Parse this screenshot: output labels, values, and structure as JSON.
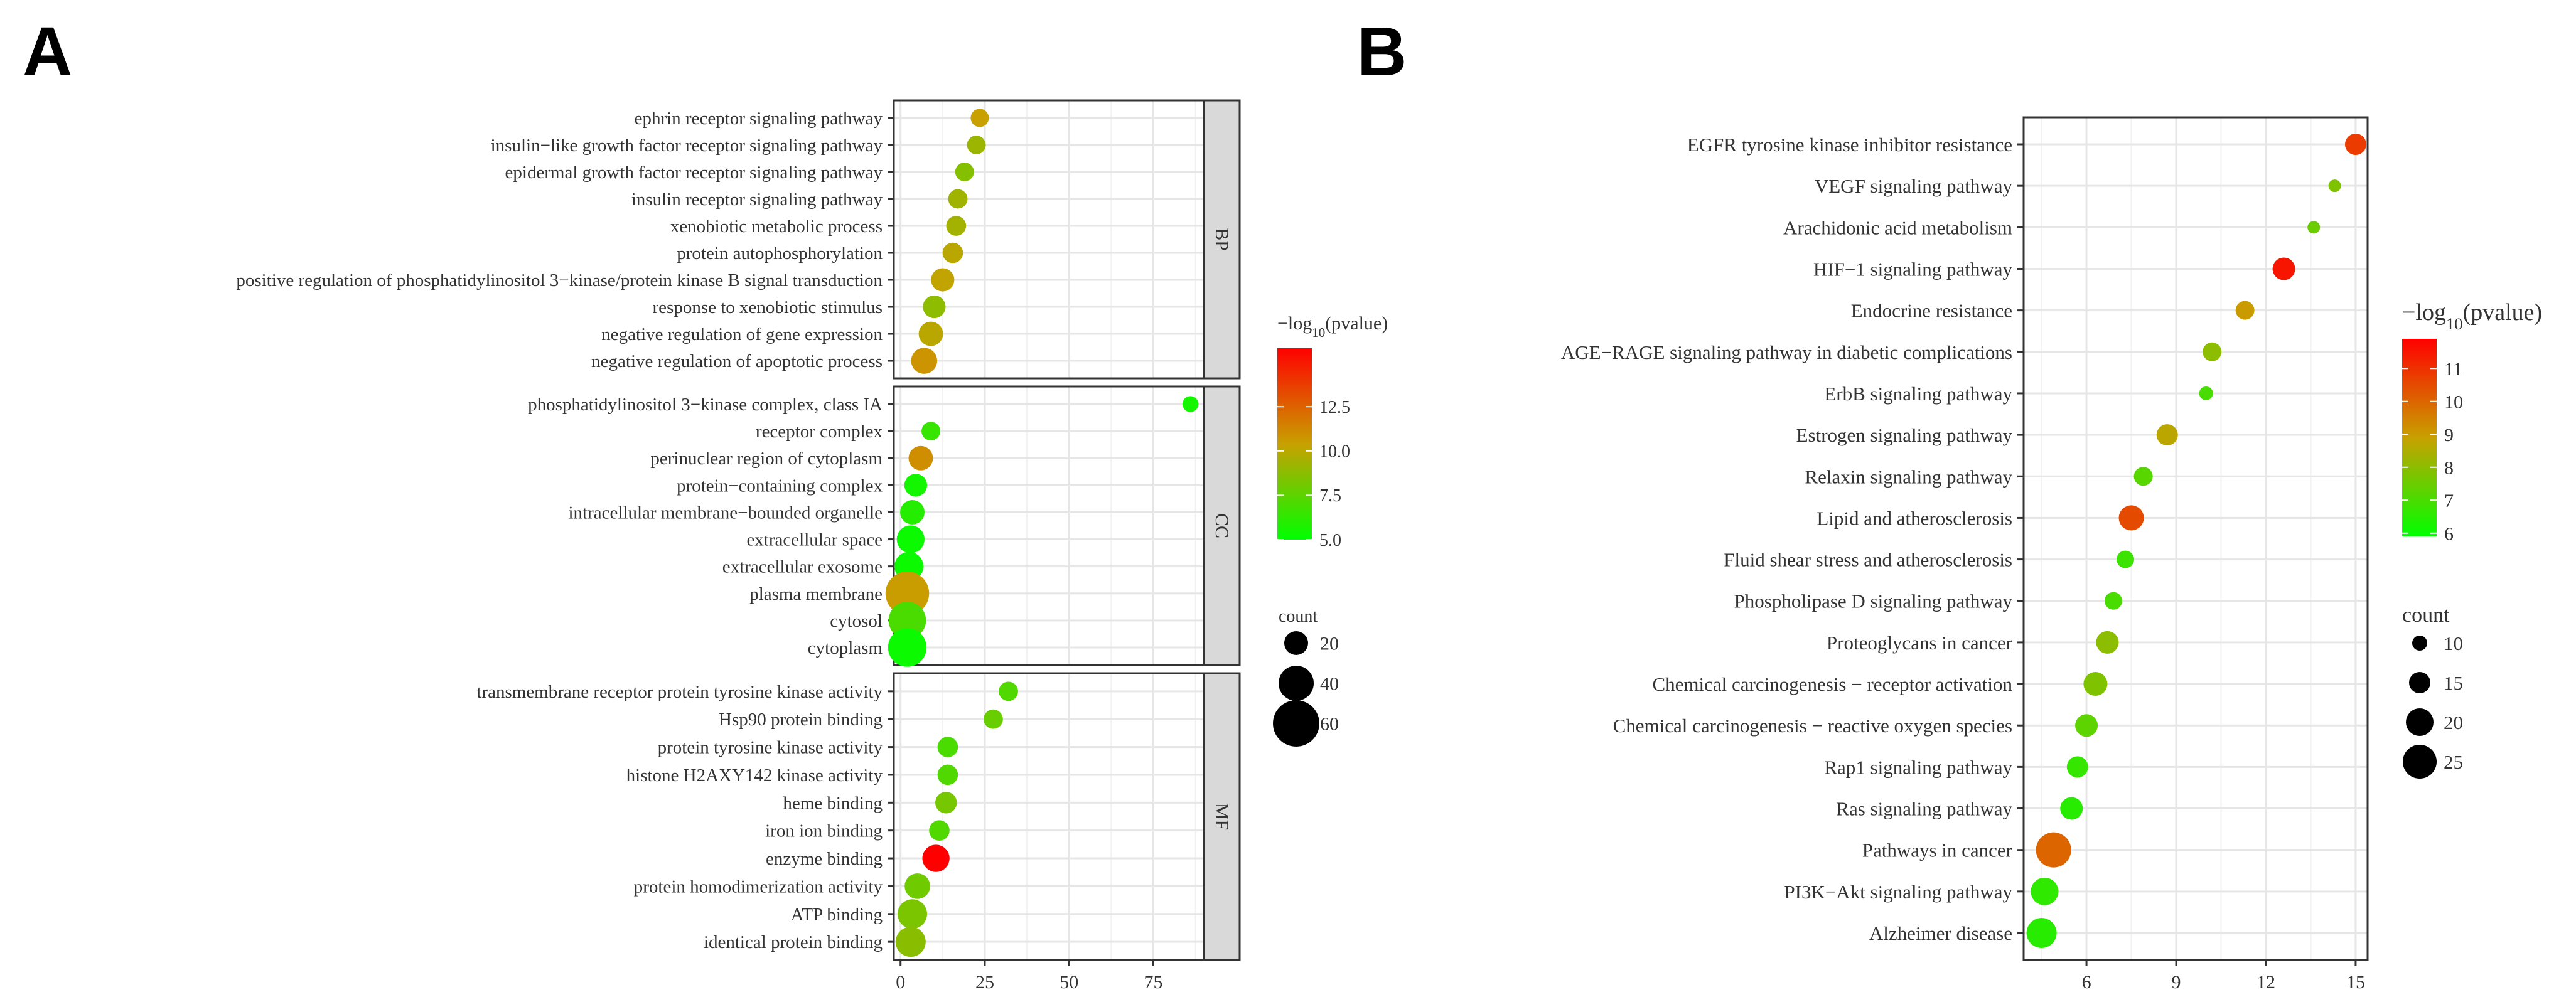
{
  "chart_data": [
    {
      "type": "scatter",
      "panel_label": "A",
      "xlabel": "",
      "ylabel": "",
      "x_ticks": [
        0,
        25,
        50,
        75
      ],
      "xlim": [
        -2,
        90
      ],
      "facets": [
        {
          "name": "BP",
          "categories": [
            "ephrin receptor signaling pathway",
            "insulin−like growth factor receptor signaling pathway",
            "epidermal growth factor receptor signaling pathway",
            "insulin receptor signaling pathway",
            "xenobiotic metabolic process",
            "protein autophosphorylation",
            "positive regulation of phosphatidylinositol 3−kinase/protein kinase B signal transduction",
            "response to xenobiotic stimulus",
            "negative regulation of gene expression",
            "negative regulation of apoptotic process"
          ],
          "x": [
            23.5,
            22.5,
            19.0,
            17.0,
            16.5,
            15.5,
            12.5,
            10.0,
            9.0,
            7.0
          ],
          "neglog10p": [
            10.4,
            9.2,
            8.6,
            9.3,
            9.4,
            10.0,
            10.2,
            8.8,
            10.0,
            10.8
          ],
          "count": [
            10,
            11,
            11,
            12,
            13,
            14,
            19,
            18,
            21,
            24
          ]
        },
        {
          "name": "CC",
          "categories": [
            "phosphatidylinositol 3−kinase complex, class IA",
            "receptor complex",
            "perinuclear region of cytoplasm",
            "protein−containing complex",
            "intracellular membrane−bounded organelle",
            "extracellular space",
            "extracellular exosome",
            "plasma membrane",
            "cytosol",
            "cytoplasm"
          ],
          "x": [
            86.0,
            9.0,
            6.0,
            4.5,
            3.5,
            3.0,
            2.5,
            2.0,
            2.0,
            2.0
          ],
          "neglog10p": [
            5.5,
            6.5,
            11.0,
            5.5,
            6.0,
            5.3,
            5.3,
            10.5,
            7.0,
            5.3
          ],
          "count": [
            6,
            11,
            21,
            18,
            21,
            27,
            29,
            55,
            44,
            46
          ]
        },
        {
          "name": "MF",
          "categories": [
            "transmembrane receptor protein tyrosine kinase activity",
            "Hsp90 protein binding",
            "protein tyrosine kinase activity",
            "histone H2AXY142 kinase activity",
            "heme binding",
            "iron ion binding",
            "enzyme binding",
            "protein homodimerization activity",
            "ATP binding",
            "identical protein binding"
          ],
          "x": [
            32.0,
            27.5,
            14.0,
            14.0,
            13.5,
            11.5,
            10.5,
            5.0,
            3.5,
            3.0
          ],
          "neglog10p": [
            7.2,
            7.8,
            7.0,
            7.2,
            8.2,
            7.2,
            15.8,
            8.0,
            8.3,
            8.7
          ],
          "count": [
            12,
            12,
            14,
            14,
            16,
            14,
            26,
            23,
            30,
            31
          ]
        }
      ],
      "legend": {
        "color_title": "−log10(pvalue)",
        "color_ticks": [
          "5.0",
          "7.5",
          "10.0",
          "12.5"
        ],
        "color_range": [
          5.0,
          15.8
        ],
        "color_low": "#00ff00",
        "color_mid": "#c8a000",
        "color_high": "#ff0000",
        "size_title": "count",
        "size_values": [
          20,
          40,
          60
        ]
      }
    },
    {
      "type": "scatter",
      "panel_label": "B",
      "xlabel": "",
      "ylabel": "",
      "x_ticks": [
        6,
        9,
        12,
        15
      ],
      "xlim": [
        3.9,
        15.4
      ],
      "categories": [
        "EGFR tyrosine kinase inhibitor resistance",
        "VEGF signaling pathway",
        "Arachidonic acid metabolism",
        "HIF−1 signaling pathway",
        "Endocrine resistance",
        "AGE−RAGE signaling pathway in diabetic complications",
        "ErbB signaling pathway",
        "Estrogen signaling pathway",
        "Relaxin signaling pathway",
        "Lipid and atherosclerosis",
        "Fluid shear stress and atherosclerosis",
        "Phospholipase D signaling pathway",
        "Proteoglycans in cancer",
        "Chemical carcinogenesis − receptor activation",
        "Chemical carcinogenesis − reactive oxygen species",
        "Rap1 signaling pathway",
        "Ras signaling pathway",
        "Pathways in cancer",
        "PI3K−Akt signaling pathway",
        "Alzheimer disease"
      ],
      "x": [
        15.0,
        14.3,
        13.6,
        12.6,
        11.3,
        10.2,
        10.0,
        8.7,
        7.9,
        7.5,
        7.3,
        6.9,
        6.7,
        6.3,
        6.0,
        5.7,
        5.5,
        4.9,
        4.6,
        4.5
      ],
      "neglog10p": [
        10.8,
        7.8,
        7.5,
        11.5,
        9.0,
        8.0,
        7.0,
        8.7,
        7.2,
        10.5,
        6.8,
        7.0,
        8.0,
        7.8,
        7.3,
        6.7,
        6.5,
        10.0,
        6.6,
        6.5
      ],
      "count": [
        15,
        8,
        8,
        16,
        13,
        13,
        9,
        15,
        13,
        18,
        12,
        12,
        16,
        17,
        16,
        15,
        16,
        26,
        20,
        22
      ],
      "legend": {
        "color_title": "−log10(pvalue)",
        "color_ticks": [
          "6",
          "7",
          "8",
          "9",
          "10",
          "11"
        ],
        "color_range": [
          5.9,
          11.9
        ],
        "color_low": "#00ff00",
        "color_mid": "#c8a000",
        "color_high": "#ff0000",
        "size_title": "count",
        "size_values": [
          10,
          15,
          20,
          25
        ]
      }
    }
  ]
}
